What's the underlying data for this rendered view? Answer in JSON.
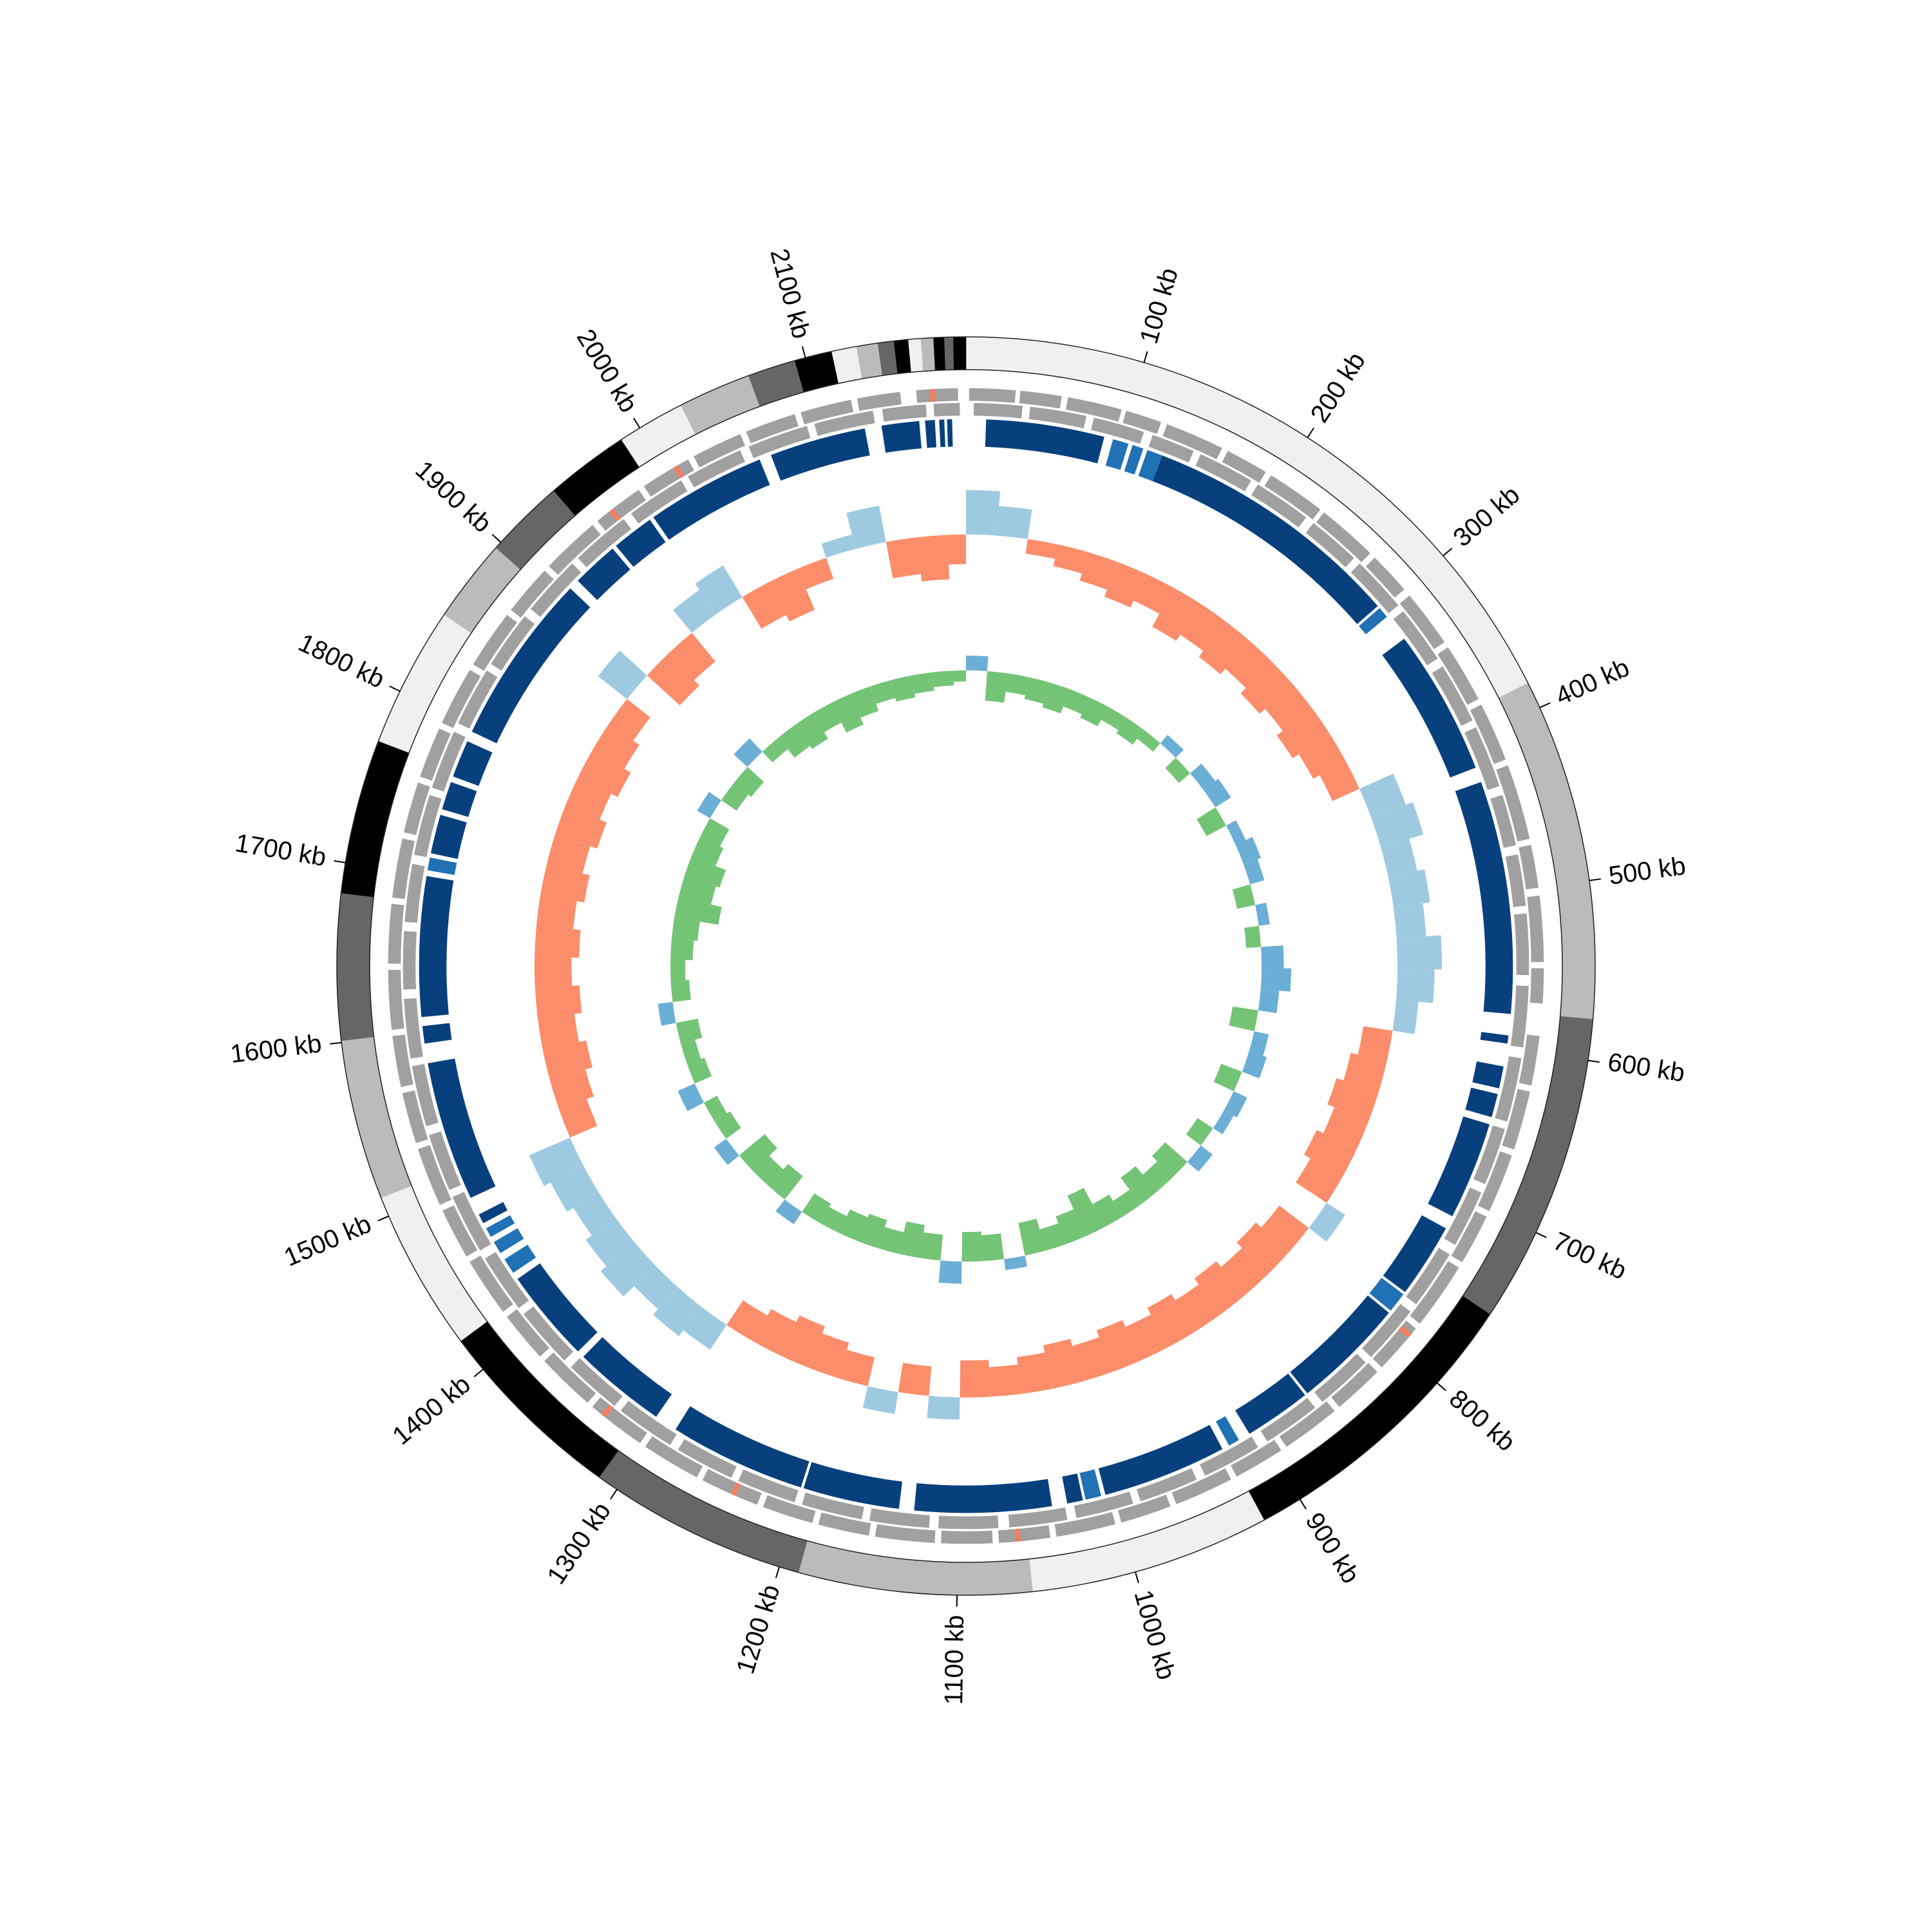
{
  "chart_data": {
    "type": "circos",
    "xlim": [
      0,
      2190
    ],
    "xticks": [
      {
        "value": 100,
        "label": "100 kb"
      },
      {
        "value": 200,
        "label": "200 kb"
      },
      {
        "value": 300,
        "label": "300 kb"
      },
      {
        "value": 400,
        "label": "400 kb"
      },
      {
        "value": 500,
        "label": "500 kb"
      },
      {
        "value": 600,
        "label": "600 kb"
      },
      {
        "value": 700,
        "label": "700 kb"
      },
      {
        "value": 800,
        "label": "800 kb"
      },
      {
        "value": 900,
        "label": "900 kb"
      },
      {
        "value": 1000,
        "label": "1000 kb"
      },
      {
        "value": 1100,
        "label": "1100 kb"
      },
      {
        "value": 1200,
        "label": "1200 kb"
      },
      {
        "value": 1300,
        "label": "1300 kb"
      },
      {
        "value": 1400,
        "label": "1400 kb"
      },
      {
        "value": 1500,
        "label": "1500 kb"
      },
      {
        "value": 1600,
        "label": "1600 kb"
      },
      {
        "value": 1700,
        "label": "1700 kb"
      },
      {
        "value": 1800,
        "label": "1800 kb"
      },
      {
        "value": 1900,
        "label": "1900 kb"
      },
      {
        "value": 2000,
        "label": "2000 kb"
      },
      {
        "value": 2100,
        "label": "2100 kb"
      }
    ],
    "contigs": {
      "start": [
        0,
        385,
        577,
        752,
        923,
        1058,
        1189,
        1312,
        1420,
        1511,
        1601,
        1683,
        1770,
        1849,
        1896,
        1941,
        1988,
        2026,
        2067,
        2094,
        2115,
        2129,
        2141,
        2150,
        2158,
        2165,
        2172,
        2178,
        2183
      ],
      "end": [
        385,
        577,
        752,
        923,
        1058,
        1189,
        1312,
        1420,
        1511,
        1601,
        1683,
        1770,
        1849,
        1896,
        1941,
        1988,
        2026,
        2067,
        2094,
        2115,
        2129,
        2141,
        2150,
        2158,
        2165,
        2172,
        2178,
        2183,
        2190
      ],
      "color": [
        "#f0f0f0",
        "#bbbbbb",
        "#666666",
        "#000000",
        "#f0f0f0",
        "#bbbbbb",
        "#666666",
        "#000000",
        "#f0f0f0",
        "#bbbbbb",
        "#666666",
        "#000000",
        "#f0f0f0",
        "#bbbbbb",
        "#666666",
        "#000000",
        "#f0f0f0",
        "#bbbbbb",
        "#666666",
        "#000000",
        "#f0f0f0",
        "#bbbbbb",
        "#666666",
        "#000000",
        "#f0f0f0",
        "#bbbbbb",
        "#000000",
        "#666666",
        "#000000"
      ]
    },
    "genes_forward": {
      "color": "#a0a0a0",
      "start": [
        2,
        33,
        62,
        98,
        124,
        164,
        194,
        233,
        274,
        305,
        344,
        384,
        424,
        474,
        505,
        549,
        590,
        624,
        664,
        704,
        739,
        784,
        819,
        854,
        894,
        929,
        969,
        1004,
        1044,
        1079,
        1114,
        1154,
        1189,
        1224,
        1264,
        1304,
        1344,
        1384,
        1419,
        1459,
        1494,
        1534,
        1569,
        1604,
        1644,
        1684,
        1724,
        1759,
        1794,
        1834,
        1874,
        1909,
        1949,
        1984,
        2019,
        2054,
        2089,
        2124,
        2160
      ],
      "end": [
        30,
        58,
        95,
        120,
        160,
        190,
        230,
        270,
        300,
        340,
        380,
        420,
        470,
        500,
        545,
        570,
        620,
        660,
        700,
        735,
        780,
        815,
        850,
        890,
        925,
        965,
        1000,
        1040,
        1075,
        1110,
        1150,
        1185,
        1220,
        1260,
        1300,
        1340,
        1380,
        1415,
        1455,
        1490,
        1530,
        1565,
        1600,
        1640,
        1680,
        1720,
        1755,
        1790,
        1830,
        1870,
        1905,
        1945,
        1980,
        2015,
        2050,
        2085,
        2120,
        2150,
        2185
      ]
    },
    "genes_reverse": {
      "color": "#a0a0a0",
      "start": [
        5,
        40,
        80,
        118,
        150,
        190,
        232,
        270,
        310,
        352,
        395,
        440,
        478,
        515,
        560,
        605,
        650,
        692,
        735,
        778,
        820,
        862,
        905,
        948,
        990,
        1032,
        1075,
        1118,
        1160,
        1203,
        1245,
        1288,
        1330,
        1372,
        1415,
        1458,
        1500,
        1542,
        1585,
        1628,
        1670,
        1712,
        1755,
        1798,
        1840,
        1882,
        1925,
        1968,
        2010,
        2052,
        2095,
        2138,
        2170
      ],
      "end": [
        35,
        75,
        112,
        145,
        185,
        226,
        265,
        305,
        346,
        390,
        434,
        472,
        510,
        553,
        598,
        645,
        686,
        728,
        772,
        815,
        856,
        898,
        942,
        985,
        1026,
        1068,
        1112,
        1155,
        1198,
        1240,
        1282,
        1325,
        1366,
        1410,
        1452,
        1495,
        1536,
        1580,
        1622,
        1664,
        1706,
        1750,
        1792,
        1835,
        1876,
        1920,
        1962,
        2005,
        2046,
        2090,
        2132,
        2165,
        2186
      ]
    },
    "rna": {
      "color": "#f08060",
      "start": [
        2168,
        2005,
        1958,
        788,
        1062,
        1238,
        1330
      ],
      "end": [
        2171,
        2008,
        1961,
        791,
        1065,
        1241,
        1333
      ]
    },
    "blocks_dark": {
      "color": "#08407e",
      "start": [
        13,
        128,
        324,
        428,
        592,
        612,
        630,
        650,
        722,
        787,
        862,
        925,
        1020,
        1040,
        1138,
        1202,
        1305,
        1370,
        1472,
        1490,
        1593,
        1610,
        1715,
        1744,
        1766,
        1797,
        1915,
        1948,
        1978,
        2063,
        2136,
        2164,
        2173,
        2178
      ],
      "end": [
        89,
        297,
        418,
        578,
        597,
        626,
        645,
        713,
        770,
        860,
        905,
        1005,
        1030,
        1128,
        1200,
        1290,
        1365,
        1430,
        1478,
        1580,
        1604,
        1700,
        1740,
        1762,
        1790,
        1908,
        1945,
        1975,
        2055,
        2125,
        2160,
        2170,
        2176,
        2181
      ]
    },
    "blocks_light": {
      "color": "#2171b5",
      "start": [
        95,
        108,
        118,
        299,
        772,
        913,
        1008,
        1435,
        1450,
        1462,
        1704
      ],
      "end": [
        105,
        115,
        128,
        306,
        785,
        920,
        1018,
        1445,
        1458,
        1468,
        1712
      ]
    },
    "gc_content": {
      "ylim": [
        -10,
        10
      ],
      "positive_color": "#9ecae1",
      "negative_color": "#fc8d6a",
      "x": [
        0,
        25,
        50,
        75,
        100,
        125,
        150,
        175,
        200,
        225,
        250,
        275,
        300,
        325,
        350,
        375,
        400,
        425,
        450,
        475,
        500,
        525,
        550,
        575,
        600,
        625,
        650,
        675,
        700,
        725,
        750,
        775,
        800,
        825,
        850,
        875,
        900,
        925,
        950,
        975,
        1000,
        1025,
        1050,
        1075,
        1100,
        1125,
        1150,
        1175,
        1200,
        1225,
        1250,
        1275,
        1300,
        1325,
        1350,
        1375,
        1400,
        1425,
        1450,
        1475,
        1500,
        1525,
        1550,
        1575,
        1600,
        1625,
        1650,
        1675,
        1700,
        1725,
        1750,
        1775,
        1800,
        1825,
        1850,
        1875,
        1900,
        1925,
        1950,
        1975,
        2000,
        2025,
        2050,
        2075,
        2100,
        2125,
        2150,
        2175
      ],
      "values": [
        6,
        4,
        -2,
        -3,
        -4,
        -5,
        -4,
        -6,
        -5,
        -6,
        -5,
        -6,
        -5,
        -6,
        -5,
        -4,
        5,
        6,
        4,
        5,
        4,
        6,
        5,
        3,
        -4,
        -5,
        -6,
        -5,
        -6,
        -5,
        3,
        -5,
        -6,
        -5,
        -6,
        -5,
        -6,
        -5,
        -6,
        -5,
        -6,
        -5,
        -4,
        -5,
        3,
        -4,
        3,
        -4,
        -5,
        -6,
        -5,
        -4,
        4,
        5,
        4,
        6,
        5,
        4,
        5,
        6,
        -4,
        -5,
        -6,
        -5,
        -6,
        -5,
        -6,
        -5,
        -6,
        -5,
        -6,
        -5,
        -6,
        -5,
        -4,
        5,
        -6,
        -5,
        4,
        5,
        -5,
        -6,
        -3,
        2,
        5,
        -5,
        -6,
        -4
      ]
    },
    "gc_skew": {
      "ylim": [
        -0.2,
        0.2
      ],
      "positive_color": "#6baed6",
      "negative_color": "#74c476",
      "x": [
        0,
        25,
        50,
        75,
        100,
        125,
        150,
        175,
        200,
        225,
        250,
        275,
        300,
        325,
        350,
        375,
        400,
        425,
        450,
        475,
        500,
        525,
        550,
        575,
        600,
        625,
        650,
        675,
        700,
        725,
        750,
        775,
        800,
        825,
        850,
        875,
        900,
        925,
        950,
        975,
        1000,
        1025,
        1050,
        1075,
        1100,
        1125,
        1150,
        1175,
        1200,
        1225,
        1250,
        1275,
        1300,
        1325,
        1350,
        1375,
        1400,
        1425,
        1450,
        1475,
        1500,
        1525,
        1550,
        1575,
        1600,
        1625,
        1650,
        1675,
        1700,
        1725,
        1750,
        1775,
        1800,
        1825,
        1850,
        1875,
        1900,
        1925,
        1950,
        1975,
        2000,
        2025,
        2050,
        2075,
        2100,
        2125,
        2150,
        2175
      ],
      "values": [
        0.04,
        -0.08,
        -0.05,
        -0.06,
        -0.07,
        -0.05,
        -0.06,
        -0.04,
        -0.05,
        -0.03,
        0.03,
        -0.04,
        0.04,
        0.05,
        -0.06,
        0.03,
        0.05,
        0.04,
        -0.05,
        0.03,
        -0.04,
        0.06,
        0.08,
        0.05,
        -0.07,
        0.04,
        0.05,
        -0.06,
        0.04,
        0.03,
        -0.05,
        0.04,
        -0.08,
        -0.06,
        -0.09,
        -0.05,
        -0.07,
        -0.12,
        -0.08,
        -0.06,
        -0.09,
        0.03,
        -0.07,
        -0.08,
        0.06,
        -0.07,
        -0.09,
        -0.06,
        -0.08,
        -0.07,
        -0.05,
        -0.06,
        0.04,
        -0.08,
        -0.06,
        -0.09,
        0.04,
        -0.05,
        -0.04,
        0.05,
        -0.05,
        -0.04,
        -0.06,
        0.04,
        -0.05,
        -0.04,
        -0.06,
        -0.07,
        -0.12,
        -0.09,
        -0.1,
        -0.07,
        -0.06,
        0.04,
        -0.05,
        -0.06,
        0.05,
        -0.04,
        -0.07,
        -0.08,
        -0.06,
        -0.09,
        -0.07,
        -0.05,
        -0.06,
        -0.05,
        -0.04,
        -0.03
      ]
    }
  }
}
